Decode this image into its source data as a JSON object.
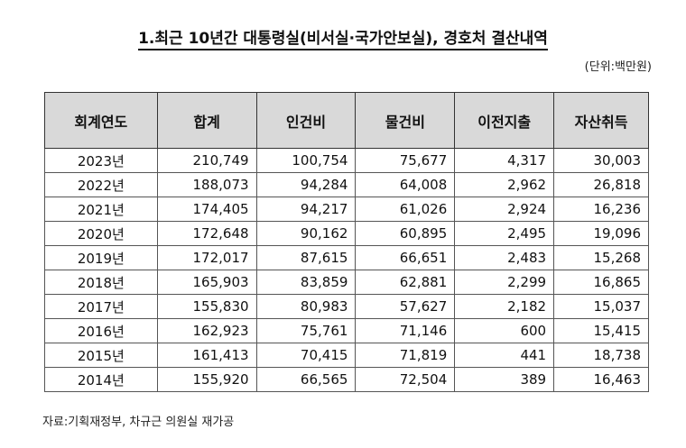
{
  "title": "1.최근 10년간 대통령실(비서실·국가안보실), 경호처 결산내역",
  "unit": "(단위:백만원)",
  "table": {
    "headers": [
      "회계연도",
      "합계",
      "인건비",
      "물건비",
      "이전지출",
      "자산취득"
    ],
    "rows": [
      [
        "2023년",
        "210,749",
        "100,754",
        "75,677",
        "4,317",
        "30,003"
      ],
      [
        "2022년",
        "188,073",
        "94,284",
        "64,008",
        "2,962",
        "26,818"
      ],
      [
        "2021년",
        "174,405",
        "94,217",
        "61,026",
        "2,924",
        "16,236"
      ],
      [
        "2020년",
        "172,648",
        "90,162",
        "60,895",
        "2,495",
        "19,096"
      ],
      [
        "2019년",
        "172,017",
        "87,615",
        "66,651",
        "2,483",
        "15,268"
      ],
      [
        "2018년",
        "165,903",
        "83,859",
        "62,881",
        "2,299",
        "16,865"
      ],
      [
        "2017년",
        "155,830",
        "80,983",
        "57,627",
        "2,182",
        "15,037"
      ],
      [
        "2016년",
        "162,923",
        "75,761",
        "71,146",
        "600",
        "15,415"
      ],
      [
        "2015년",
        "161,413",
        "70,415",
        "71,819",
        "441",
        "18,738"
      ],
      [
        "2014년",
        "155,920",
        "66,565",
        "72,504",
        "389",
        "16,463"
      ]
    ]
  },
  "source": "자료:기획재정부, 차규근 의원실 재가공"
}
